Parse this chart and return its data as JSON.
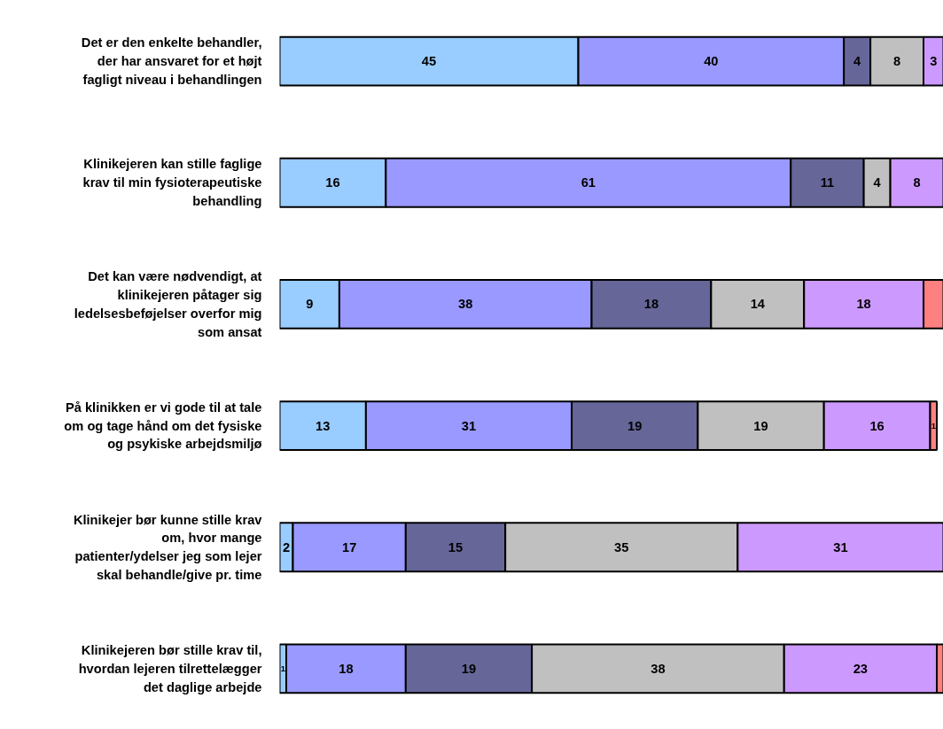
{
  "chart_data": {
    "type": "bar",
    "orientation": "horizontal",
    "stacked": true,
    "categories": [
      "Det er den enkelte behandler,\nder har ansvaret for et højt\nfagligt niveau i behandlingen",
      "Klinikejeren kan stille faglige\nkrav til min fysioterapeutiske\nbehandling",
      "Det kan være nødvendigt, at\nklinikejeren påtager sig\nledelsesbeføjelser overfor mig\nsom ansat",
      "På klinikken er vi gode til at tale\nom og tage hånd om det fysiske\nog psykiske arbejdsmiljø",
      "Klinikejer bør kunne stille krav\nom, hvor mange\npatienter/ydelser jeg som lejer\nskal behandle/give pr. time",
      "Klinikejeren bør stille krav til,\nhvordan lejeren tilrettelægger\ndet daglige arbejde"
    ],
    "series": [
      {
        "color": "#99ccff",
        "values": [
          45,
          16,
          9,
          13,
          2,
          1
        ],
        "value_labels": [
          "45",
          "16",
          "9",
          "13",
          "2",
          "1"
        ]
      },
      {
        "color": "#9999ff",
        "values": [
          40,
          61,
          38,
          31,
          17,
          18
        ],
        "value_labels": [
          "40",
          "61",
          "38",
          "31",
          "17",
          "18"
        ]
      },
      {
        "color": "#666699",
        "values": [
          4,
          11,
          18,
          19,
          15,
          19
        ],
        "value_labels": [
          "4",
          "11",
          "18",
          "19",
          "15",
          "19"
        ]
      },
      {
        "color": "#c0c0c0",
        "values": [
          8,
          4,
          14,
          19,
          35,
          38
        ],
        "value_labels": [
          "8",
          "4",
          "14",
          "19",
          "35",
          "38"
        ]
      },
      {
        "color": "#cc99ff",
        "values": [
          3,
          8,
          18,
          16,
          31,
          23
        ],
        "value_labels": [
          "3",
          "8",
          "18",
          "16",
          "31",
          "23"
        ]
      },
      {
        "color": "#ff8080",
        "values": [
          null,
          null,
          3,
          1,
          null,
          1
        ],
        "value_labels": [
          null,
          null,
          null,
          "1",
          null,
          null
        ]
      }
    ],
    "xlim": [
      0,
      100
    ],
    "tick_labels": false
  }
}
